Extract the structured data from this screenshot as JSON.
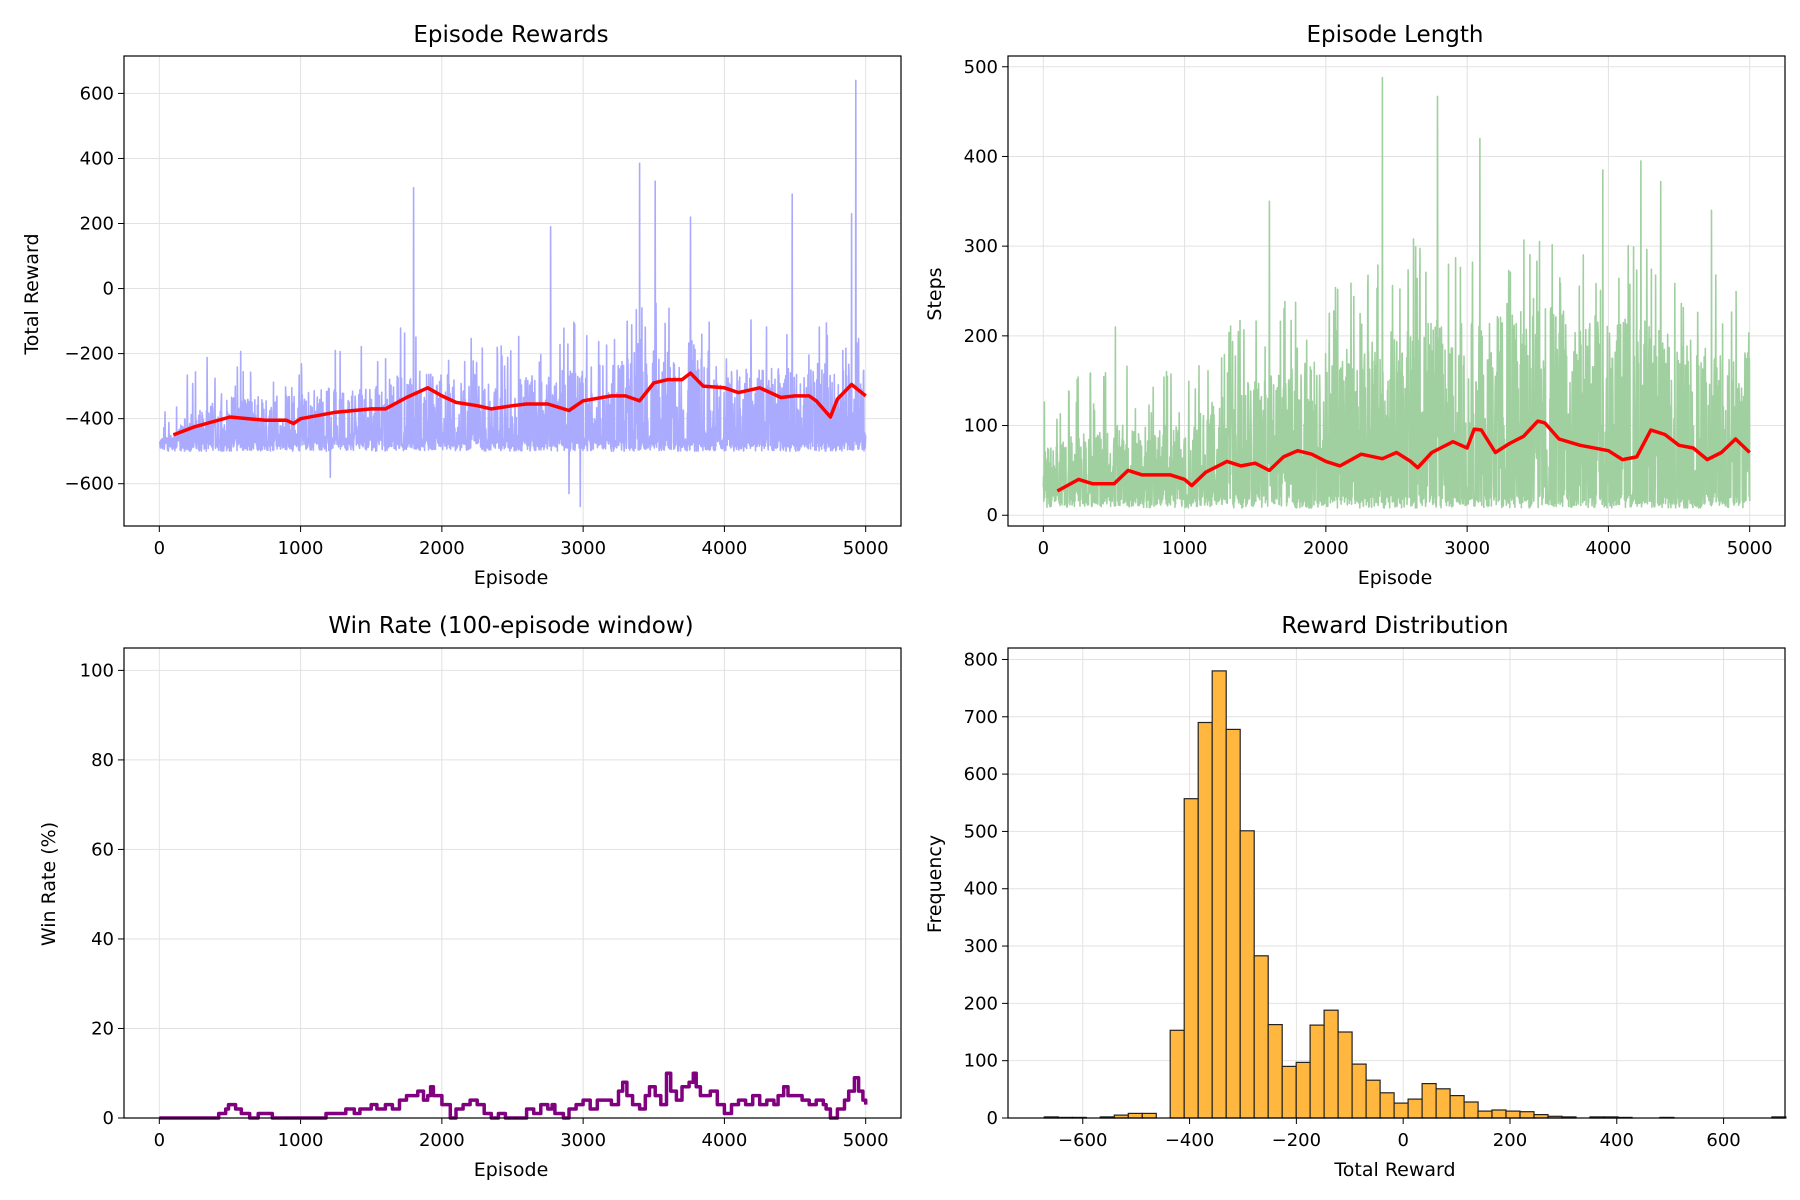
{
  "charts": [
    {
      "type": "line",
      "title": "Episode Rewards",
      "xlabel": "Episode",
      "ylabel": "Total Reward",
      "xlim": [
        -250,
        5250
      ],
      "ylim": [
        -730,
        715
      ],
      "xticks": [
        0,
        1000,
        2000,
        3000,
        4000,
        5000
      ],
      "yticks": [
        -600,
        -400,
        -200,
        0,
        200,
        400,
        600
      ],
      "grid": true,
      "colors": {
        "raw": "#aaaaff",
        "moving": "#ff0000"
      },
      "raw": {
        "episodes": 5000,
        "points": [
          [
            0,
            -480
          ],
          [
            250,
            -370
          ],
          [
            500,
            -330
          ],
          [
            750,
            -340
          ],
          [
            1000,
            -320
          ],
          [
            1250,
            -300
          ],
          [
            1500,
            -300
          ],
          [
            1750,
            -250
          ],
          [
            2000,
            -260
          ],
          [
            2250,
            -290
          ],
          [
            2500,
            -280
          ],
          [
            2750,
            -260
          ],
          [
            3000,
            -240
          ],
          [
            3250,
            -220
          ],
          [
            3500,
            -190
          ],
          [
            3750,
            -200
          ],
          [
            4000,
            -240
          ],
          [
            4250,
            -240
          ],
          [
            4500,
            -250
          ],
          [
            4750,
            -250
          ],
          [
            5000,
            -250
          ]
        ],
        "spikes": [
          [
            1210,
            -580
          ],
          [
            2900,
            -630
          ],
          [
            2980,
            -670
          ],
          [
            1800,
            310
          ],
          [
            3400,
            385
          ],
          [
            3510,
            330
          ],
          [
            4930,
            640
          ],
          [
            4480,
            290
          ],
          [
            3760,
            220
          ],
          [
            2770,
            190
          ],
          [
            4900,
            230
          ]
        ]
      },
      "moving_avg": {
        "window": 100,
        "points": [
          [
            100,
            -450
          ],
          [
            250,
            -425
          ],
          [
            500,
            -395
          ],
          [
            750,
            -405
          ],
          [
            900,
            -405
          ],
          [
            950,
            -415
          ],
          [
            1000,
            -400
          ],
          [
            1250,
            -380
          ],
          [
            1500,
            -370
          ],
          [
            1600,
            -370
          ],
          [
            1750,
            -335
          ],
          [
            1900,
            -305
          ],
          [
            2000,
            -330
          ],
          [
            2100,
            -350
          ],
          [
            2250,
            -360
          ],
          [
            2350,
            -370
          ],
          [
            2500,
            -360
          ],
          [
            2600,
            -355
          ],
          [
            2750,
            -355
          ],
          [
            2900,
            -375
          ],
          [
            3000,
            -345
          ],
          [
            3200,
            -330
          ],
          [
            3300,
            -330
          ],
          [
            3400,
            -345
          ],
          [
            3500,
            -290
          ],
          [
            3600,
            -280
          ],
          [
            3700,
            -280
          ],
          [
            3760,
            -260
          ],
          [
            3850,
            -300
          ],
          [
            4000,
            -305
          ],
          [
            4100,
            -320
          ],
          [
            4250,
            -305
          ],
          [
            4400,
            -335
          ],
          [
            4500,
            -330
          ],
          [
            4600,
            -330
          ],
          [
            4650,
            -345
          ],
          [
            4700,
            -370
          ],
          [
            4750,
            -395
          ],
          [
            4800,
            -340
          ],
          [
            4900,
            -295
          ],
          [
            5000,
            -330
          ]
        ]
      }
    },
    {
      "type": "line",
      "title": "Episode Length",
      "xlabel": "Episode",
      "ylabel": "Steps",
      "xlim": [
        -250,
        5250
      ],
      "ylim": [
        -12,
        512
      ],
      "xticks": [
        0,
        1000,
        2000,
        3000,
        4000,
        5000
      ],
      "yticks": [
        0,
        100,
        200,
        300,
        400,
        500
      ],
      "grid": true,
      "colors": {
        "raw": "#a0d0a0",
        "moving": "#ff0000"
      },
      "raw": {
        "episodes": 5000,
        "points": [
          [
            0,
            80
          ],
          [
            250,
            100
          ],
          [
            500,
            110
          ],
          [
            750,
            110
          ],
          [
            1000,
            110
          ],
          [
            1250,
            150
          ],
          [
            1500,
            170
          ],
          [
            1750,
            180
          ],
          [
            2000,
            200
          ],
          [
            2250,
            210
          ],
          [
            2500,
            230
          ],
          [
            2750,
            250
          ],
          [
            3000,
            240
          ],
          [
            3250,
            260
          ],
          [
            3500,
            270
          ],
          [
            3750,
            250
          ],
          [
            4000,
            250
          ],
          [
            4250,
            240
          ],
          [
            4500,
            220
          ],
          [
            4750,
            210
          ],
          [
            5000,
            200
          ]
        ],
        "spikes": [
          [
            2400,
            488
          ],
          [
            2790,
            467
          ],
          [
            3090,
            420
          ],
          [
            2620,
            308
          ],
          [
            4230,
            395
          ],
          [
            4370,
            372
          ],
          [
            3960,
            385
          ],
          [
            1600,
            350
          ],
          [
            510,
            210
          ],
          [
            4730,
            340
          ]
        ]
      },
      "moving_avg": {
        "window": 100,
        "points": [
          [
            100,
            27
          ],
          [
            250,
            40
          ],
          [
            350,
            35
          ],
          [
            500,
            35
          ],
          [
            600,
            50
          ],
          [
            700,
            45
          ],
          [
            900,
            45
          ],
          [
            1000,
            40
          ],
          [
            1050,
            33
          ],
          [
            1150,
            48
          ],
          [
            1300,
            60
          ],
          [
            1400,
            55
          ],
          [
            1500,
            58
          ],
          [
            1600,
            50
          ],
          [
            1700,
            65
          ],
          [
            1800,
            72
          ],
          [
            1900,
            68
          ],
          [
            2000,
            60
          ],
          [
            2100,
            55
          ],
          [
            2250,
            68
          ],
          [
            2400,
            63
          ],
          [
            2500,
            70
          ],
          [
            2600,
            60
          ],
          [
            2650,
            53
          ],
          [
            2750,
            70
          ],
          [
            2900,
            82
          ],
          [
            3000,
            75
          ],
          [
            3050,
            96
          ],
          [
            3100,
            95
          ],
          [
            3200,
            70
          ],
          [
            3300,
            80
          ],
          [
            3400,
            88
          ],
          [
            3500,
            105
          ],
          [
            3550,
            103
          ],
          [
            3650,
            85
          ],
          [
            3800,
            78
          ],
          [
            4000,
            72
          ],
          [
            4100,
            62
          ],
          [
            4200,
            65
          ],
          [
            4300,
            95
          ],
          [
            4400,
            90
          ],
          [
            4500,
            78
          ],
          [
            4600,
            75
          ],
          [
            4700,
            62
          ],
          [
            4800,
            70
          ],
          [
            4900,
            85
          ],
          [
            5000,
            70
          ]
        ]
      }
    },
    {
      "type": "line",
      "title": "Win Rate (100-episode window)",
      "xlabel": "Episode",
      "ylabel": "Win Rate (%)",
      "xlim": [
        -250,
        5250
      ],
      "ylim": [
        0,
        105
      ],
      "xticks": [
        0,
        1000,
        2000,
        3000,
        4000,
        5000
      ],
      "yticks": [
        0,
        20,
        40,
        60,
        80,
        100
      ],
      "grid": true,
      "colors": {
        "line": "#800080"
      },
      "series": [
        {
          "points": [
            [
              0,
              0
            ],
            [
              400,
              0
            ],
            [
              420,
              1
            ],
            [
              460,
              1
            ],
            [
              470,
              2
            ],
            [
              490,
              3
            ],
            [
              520,
              3
            ],
            [
              540,
              2
            ],
            [
              580,
              1
            ],
            [
              620,
              1
            ],
            [
              640,
              0
            ],
            [
              680,
              0
            ],
            [
              700,
              1
            ],
            [
              790,
              1
            ],
            [
              800,
              0
            ],
            [
              1160,
              0
            ],
            [
              1180,
              1
            ],
            [
              1300,
              1
            ],
            [
              1320,
              2
            ],
            [
              1370,
              2
            ],
            [
              1380,
              1
            ],
            [
              1400,
              1
            ],
            [
              1420,
              2
            ],
            [
              1480,
              2
            ],
            [
              1500,
              3
            ],
            [
              1540,
              2
            ],
            [
              1600,
              3
            ],
            [
              1650,
              2
            ],
            [
              1700,
              4
            ],
            [
              1750,
              5
            ],
            [
              1800,
              5
            ],
            [
              1830,
              6
            ],
            [
              1870,
              4
            ],
            [
              1900,
              5
            ],
            [
              1920,
              7
            ],
            [
              1940,
              5
            ],
            [
              1980,
              5
            ],
            [
              2000,
              3
            ],
            [
              2060,
              0
            ],
            [
              2100,
              2
            ],
            [
              2150,
              3
            ],
            [
              2200,
              4
            ],
            [
              2250,
              3
            ],
            [
              2300,
              1
            ],
            [
              2350,
              0
            ],
            [
              2400,
              1
            ],
            [
              2450,
              0
            ],
            [
              2550,
              0
            ],
            [
              2600,
              2
            ],
            [
              2650,
              1
            ],
            [
              2700,
              3
            ],
            [
              2750,
              2
            ],
            [
              2780,
              3
            ],
            [
              2800,
              1
            ],
            [
              2860,
              0
            ],
            [
              2900,
              2
            ],
            [
              2950,
              3
            ],
            [
              3000,
              4
            ],
            [
              3050,
              2
            ],
            [
              3100,
              4
            ],
            [
              3150,
              4
            ],
            [
              3200,
              3
            ],
            [
              3250,
              6
            ],
            [
              3280,
              8
            ],
            [
              3310,
              5
            ],
            [
              3350,
              3
            ],
            [
              3400,
              2
            ],
            [
              3440,
              5
            ],
            [
              3470,
              7
            ],
            [
              3510,
              5
            ],
            [
              3550,
              3
            ],
            [
              3590,
              10
            ],
            [
              3620,
              6
            ],
            [
              3660,
              4
            ],
            [
              3700,
              7
            ],
            [
              3750,
              8
            ],
            [
              3780,
              10
            ],
            [
              3800,
              7
            ],
            [
              3830,
              5
            ],
            [
              3860,
              5
            ],
            [
              3900,
              6
            ],
            [
              3950,
              3
            ],
            [
              4000,
              1
            ],
            [
              4050,
              3
            ],
            [
              4100,
              4
            ],
            [
              4150,
              3
            ],
            [
              4200,
              5
            ],
            [
              4250,
              3
            ],
            [
              4300,
              4
            ],
            [
              4350,
              3
            ],
            [
              4380,
              5
            ],
            [
              4420,
              7
            ],
            [
              4450,
              5
            ],
            [
              4500,
              5
            ],
            [
              4550,
              4
            ],
            [
              4600,
              3
            ],
            [
              4650,
              4
            ],
            [
              4700,
              3
            ],
            [
              4720,
              2
            ],
            [
              4750,
              0
            ],
            [
              4800,
              2
            ],
            [
              4850,
              4
            ],
            [
              4880,
              6
            ],
            [
              4920,
              9
            ],
            [
              4950,
              6
            ],
            [
              4980,
              4
            ],
            [
              5000,
              3
            ]
          ]
        }
      ]
    },
    {
      "type": "bar",
      "title": "Reward Distribution",
      "xlabel": "Total Reward",
      "ylabel": "Frequency",
      "xlim": [
        -740,
        715
      ],
      "ylim": [
        0,
        820
      ],
      "xticks": [
        -600,
        -400,
        -200,
        0,
        200,
        400,
        600
      ],
      "yticks": [
        0,
        100,
        200,
        300,
        400,
        500,
        600,
        700,
        800
      ],
      "grid": true,
      "colors": {
        "bar": "#ffb73f",
        "edge": "#222222"
      },
      "bin_width": 26.2,
      "bin_start": -672,
      "counts": [
        2,
        1,
        1,
        0,
        2,
        5,
        8,
        8,
        0,
        153,
        557,
        690,
        780,
        678,
        501,
        283,
        163,
        90,
        97,
        162,
        188,
        150,
        94,
        66,
        44,
        26,
        33,
        60,
        51,
        39,
        28,
        12,
        14,
        12,
        11,
        6,
        3,
        2,
        0,
        2,
        2,
        1,
        0,
        0,
        1,
        0,
        0,
        0,
        0,
        0,
        0,
        0,
        2
      ]
    }
  ],
  "icons": []
}
